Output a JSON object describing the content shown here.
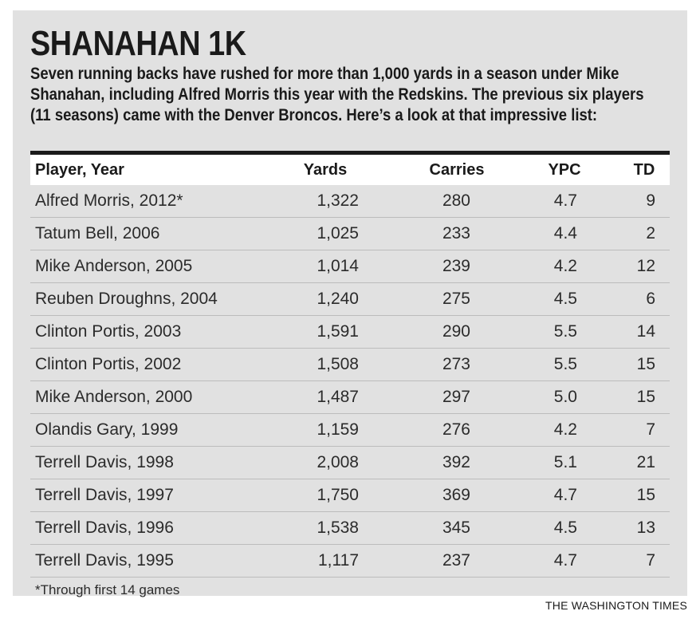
{
  "headline": "SHANAHAN 1K",
  "intro": "Seven running backs have rushed for more than 1,000 yards in a season under Mike Shanahan, including Alfred Morris this year with the Redskins. The previous six players (11 seasons) came with the Denver Broncos. Here’s a look at that impressive list:",
  "footnote": "*Through first 14 games",
  "credit": "THE WASHINGTON TIMES",
  "chart_data": {
    "type": "table",
    "title": "SHANAHAN 1K",
    "columns": [
      "Player, Year",
      "Yards",
      "Carries",
      "YPC",
      "TD"
    ],
    "rows": [
      [
        "Alfred Morris, 2012*",
        "1,322",
        "280",
        "4.7",
        "9"
      ],
      [
        "Tatum Bell, 2006",
        "1,025",
        "233",
        "4.4",
        "2"
      ],
      [
        "Mike Anderson, 2005",
        "1,014",
        "239",
        "4.2",
        "12"
      ],
      [
        "Reuben Droughns, 2004",
        "1,240",
        "275",
        "4.5",
        "6"
      ],
      [
        "Clinton Portis, 2003",
        "1,591",
        "290",
        "5.5",
        "14"
      ],
      [
        "Clinton Portis, 2002",
        "1,508",
        "273",
        "5.5",
        "15"
      ],
      [
        "Mike Anderson, 2000",
        "1,487",
        "297",
        "5.0",
        "15"
      ],
      [
        "Olandis Gary, 1999",
        "1,159",
        "276",
        "4.2",
        "7"
      ],
      [
        "Terrell Davis, 1998",
        "2,008",
        "392",
        "5.1",
        "21"
      ],
      [
        "Terrell Davis, 1997",
        "1,750",
        "369",
        "4.7",
        "15"
      ],
      [
        "Terrell Davis, 1996",
        "1,538",
        "345",
        "4.5",
        "13"
      ],
      [
        "Terrell Davis, 1995",
        "1,117",
        "237",
        "4.7",
        "7"
      ]
    ]
  }
}
